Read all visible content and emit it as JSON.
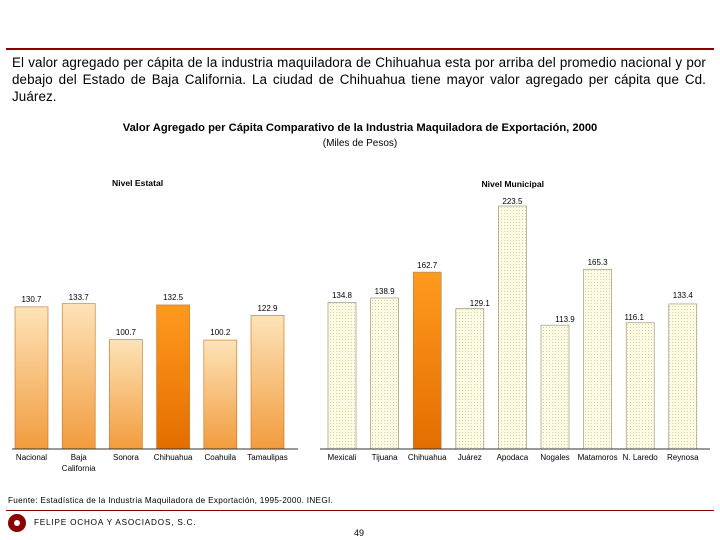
{
  "intro_text": "El valor agregado per cápita de la industria maquiladora de Chihuahua esta por arriba del promedio nacional y por debajo del Estado de Baja California. La ciudad de Chihuahua tiene mayor valor agregado per cápita que Cd. Juárez.",
  "chart_data": {
    "type": "bar",
    "title": "Valor Agregado per Cápita Comparativo de la Industria Maquiladora de Exportación, 2000",
    "subtitle": "(Miles de Pesos)",
    "ylim": [
      0,
      240
    ],
    "groups": [
      {
        "name": "Nivel Estatal",
        "categories": [
          "Nacional",
          "Baja California",
          "Sonora",
          "Chihuahua",
          "Coahuila",
          "Tamaulipas"
        ],
        "values": [
          130.7,
          133.7,
          100.7,
          132.5,
          100.2,
          122.9
        ],
        "value_labels": [
          "130.7",
          "133.7",
          "100.7",
          "132.5",
          "100.2",
          "122.9"
        ]
      },
      {
        "name": "Nivel Municipal",
        "categories": [
          "Mexicali",
          "Tijuana",
          "Chihuahua",
          "Juárez",
          "Apodaca",
          "Nogales",
          "Matamoros",
          "N. Laredo",
          "Reynosa"
        ],
        "values": [
          134.8,
          138.9,
          162.7,
          129.1,
          223.5,
          113.9,
          165.3,
          116.1,
          133.4
        ],
        "value_labels": [
          "134.8",
          "138.9",
          "162.7",
          "129.1",
          "223.5",
          "113.9",
          "165.3",
          "116.1",
          "133.4"
        ]
      }
    ],
    "highlight_color": "#ff8c00",
    "bar_color": "#f7c98c",
    "municipal_bar_color": "#fff9d6"
  },
  "footer": {
    "source": "Fuente: Estadística de la Industria Maquiladora de Exportación, 1995-2000. INEGI.",
    "company": "FELIPE OCHOA Y ASOCIADOS, S.C.",
    "page_number": "49"
  }
}
